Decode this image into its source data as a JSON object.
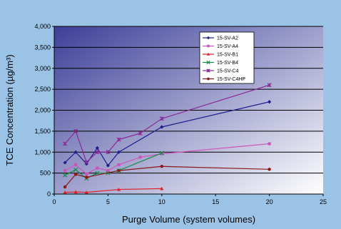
{
  "colors": {
    "page_background": "#9bc3e6",
    "plot_background_top_left": "#3c3f98",
    "plot_background_bottom_right": "#ffffff",
    "gridline": "#000000",
    "legend_background": "#ffffff"
  },
  "chart_data": {
    "type": "line",
    "title": "",
    "xlabel": "Purge Volume (system volumes)",
    "ylabel": "TCE Concentration (µg/m³)",
    "xlim": [
      0,
      25
    ],
    "ylim": [
      0,
      4000
    ],
    "x_ticks": [
      "0",
      "5",
      "10",
      "15",
      "20",
      "25"
    ],
    "y_ticks": [
      "0",
      "500",
      "1,000",
      "1,500",
      "2,000",
      "2,500",
      "3,000",
      "3,500",
      "4,000"
    ],
    "grid": "horizontal",
    "legend_position": "top-right",
    "series": [
      {
        "name": "15-SV-A2",
        "color": "#1f1f8c",
        "marker": "diamond",
        "points": [
          [
            1,
            750
          ],
          [
            2,
            1000
          ],
          [
            3,
            720
          ],
          [
            4,
            1100
          ],
          [
            5,
            680
          ],
          [
            6,
            1000
          ],
          [
            10,
            1600
          ],
          [
            20,
            2200
          ]
        ]
      },
      {
        "name": "15-SV-A4",
        "color": "#cc55bb",
        "marker": "square",
        "points": [
          [
            1,
            560
          ],
          [
            2,
            700
          ],
          [
            3,
            480
          ],
          [
            4,
            620
          ],
          [
            5,
            560
          ],
          [
            6,
            700
          ],
          [
            8,
            880
          ],
          [
            10,
            960
          ],
          [
            20,
            1200
          ]
        ]
      },
      {
        "name": "15-SV-B1",
        "color": "#e0222a",
        "marker": "triangle",
        "points": [
          [
            1,
            40
          ],
          [
            2,
            50
          ],
          [
            3,
            40
          ],
          [
            6,
            110
          ],
          [
            10,
            130
          ]
        ]
      },
      {
        "name": "15-SV-B4",
        "color": "#1a8a4a",
        "marker": "x",
        "points": [
          [
            1,
            450
          ],
          [
            2,
            580
          ],
          [
            3,
            370
          ],
          [
            4,
            500
          ],
          [
            5,
            500
          ],
          [
            6,
            560
          ],
          [
            10,
            980
          ]
        ]
      },
      {
        "name": "15-SV-C4",
        "color": "#8a2a96",
        "marker": "star",
        "points": [
          [
            1,
            1200
          ],
          [
            2,
            1500
          ],
          [
            3,
            760
          ],
          [
            4,
            1000
          ],
          [
            5,
            1000
          ],
          [
            6,
            1300
          ],
          [
            8,
            1450
          ],
          [
            10,
            1800
          ],
          [
            20,
            2600
          ]
        ]
      },
      {
        "name": "15-SV-C4HP",
        "color": "#8a1a1a",
        "marker": "circle",
        "points": [
          [
            1,
            170
          ],
          [
            2,
            470
          ],
          [
            3,
            400
          ],
          [
            6,
            560
          ],
          [
            10,
            660
          ],
          [
            20,
            590
          ]
        ]
      }
    ]
  }
}
